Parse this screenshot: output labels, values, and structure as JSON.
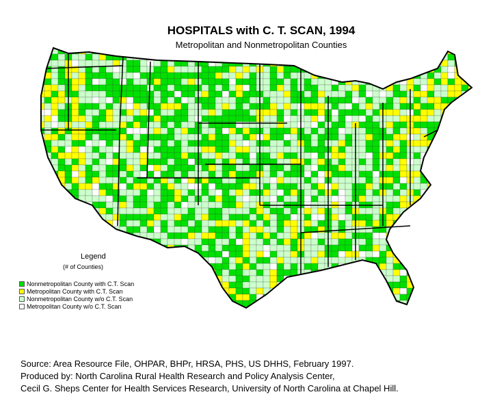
{
  "title": "HOSPITALS with C. T. SCAN, 1994",
  "subtitle": "Metropolitan and Nonmetropolitan Counties",
  "legend": {
    "title": "Legend",
    "subtitle": "(# of Counties)",
    "items": [
      {
        "label": "Nonmetropolitan County with C.T. Scan",
        "color": "#00e000"
      },
      {
        "label": "Metropolitan County with C.T. Scan",
        "color": "#ffff00"
      },
      {
        "label": "Nonmetropolitan County w/o C.T. Scan",
        "color": "#ccffcc"
      },
      {
        "label": "Metropolitan County w/o C.T. Scan",
        "color": "#ffffff"
      }
    ]
  },
  "source": {
    "line1": "Source: Area Resource File, OHPAR,  BHPr, HRSA, PHS, US DHHS, February 1997.",
    "line2": "Produced by: North Carolina Rural Health Research and Policy Analysis Center,",
    "line3": "Cecil G. Sheps Center for Health Services Research, University of North Carolina at Chapel Hill."
  },
  "colors": {
    "border": "#000000",
    "nonmetro_with": "#00e000",
    "metro_with": "#ffff00",
    "nonmetro_without": "#ccffcc",
    "metro_without": "#ffffff"
  }
}
